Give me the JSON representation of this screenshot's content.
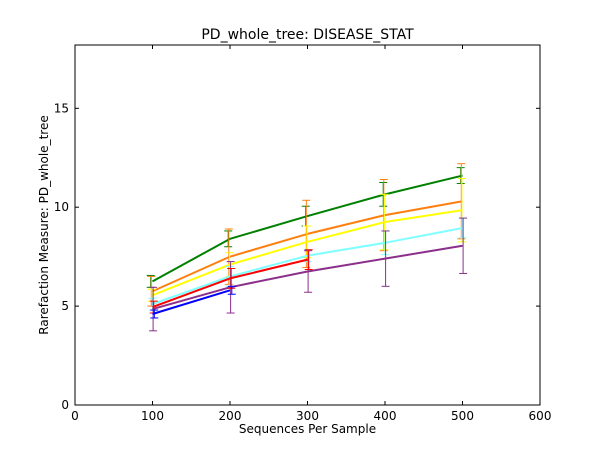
{
  "chart_data": {
    "type": "line",
    "title": "PD_whole_tree: DISEASE_STAT",
    "xlabel": "Sequences Per Sample",
    "ylabel": "Rarefaction Measure: PD_whole_tree",
    "xlim": [
      0,
      600
    ],
    "ylim": [
      0,
      18.2
    ],
    "xticks": [
      0,
      100,
      200,
      300,
      400,
      500,
      600
    ],
    "yticks": [
      0,
      5,
      10,
      15
    ],
    "grid": false,
    "legend": "none",
    "series": [
      {
        "color": "#008000",
        "x": [
          100,
          200,
          300,
          400,
          500
        ],
        "y": [
          6.25,
          8.4,
          9.55,
          10.65,
          11.6
        ],
        "err": [
          0.3,
          0.4,
          0.5,
          0.6,
          0.4
        ]
      },
      {
        "color": "#ff7f0e",
        "x": [
          100,
          200,
          300,
          400,
          500
        ],
        "y": [
          5.75,
          7.5,
          8.65,
          9.6,
          10.3
        ],
        "err": [
          0.75,
          1.4,
          1.7,
          1.8,
          1.9
        ]
      },
      {
        "color": "#ffff00",
        "x": [
          100,
          200,
          300,
          400,
          500
        ],
        "y": [
          5.55,
          7.1,
          8.25,
          9.25,
          9.85
        ],
        "err": [
          0.3,
          0.6,
          0.8,
          1.4,
          1.6
        ]
      },
      {
        "color": "#7fffff",
        "x": [
          100,
          200,
          300,
          400,
          500
        ],
        "y": [
          5.1,
          6.5,
          7.55,
          8.2,
          8.95
        ],
        "err": [
          0.3,
          0.5,
          0.3,
          0.6,
          0.5
        ]
      },
      {
        "color": "#8b2f8b",
        "x": [
          100,
          200,
          300,
          400,
          500
        ],
        "y": [
          4.85,
          5.95,
          6.75,
          7.4,
          8.05
        ],
        "err": [
          1.1,
          1.3,
          1.05,
          1.4,
          1.4
        ]
      },
      {
        "color": "#ff0000",
        "x": [
          100,
          200,
          300
        ],
        "y": [
          4.95,
          6.4,
          7.35
        ],
        "err": [
          0.3,
          0.5,
          0.5
        ]
      },
      {
        "color": "#0000ff",
        "x": [
          100,
          200
        ],
        "y": [
          4.6,
          5.8
        ],
        "err": [
          0.2,
          0.2
        ]
      }
    ]
  }
}
